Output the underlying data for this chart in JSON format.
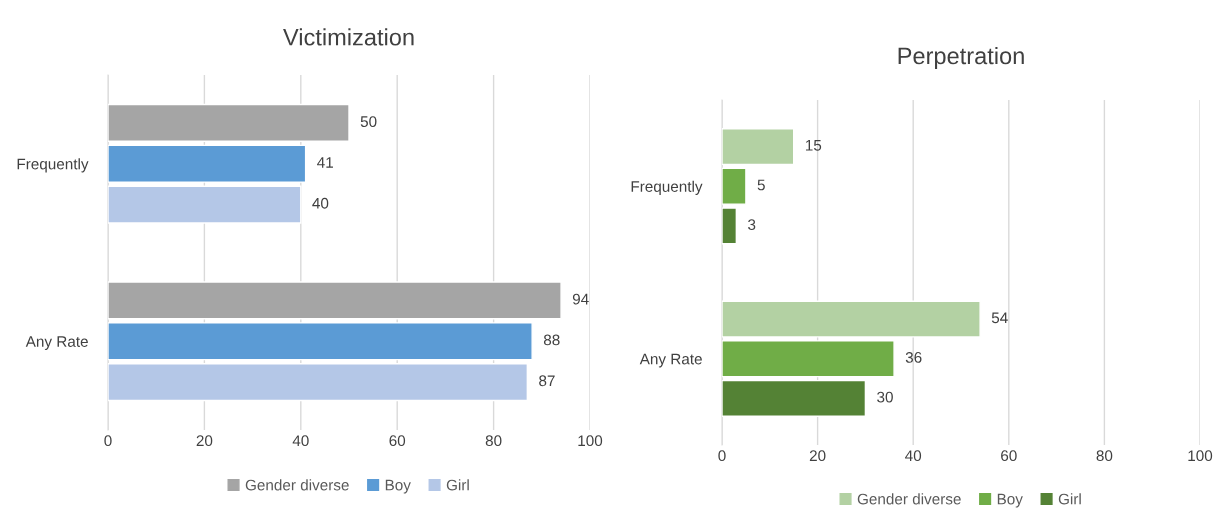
{
  "chart_data": [
    {
      "type": "bar",
      "orientation": "horizontal",
      "title": "Victimization",
      "categories": [
        "Frequently",
        "Any Rate"
      ],
      "series": [
        {
          "name": "Gender diverse",
          "color": "#a5a5a5",
          "values": [
            50,
            94
          ]
        },
        {
          "name": "Boy",
          "color": "#5b9bd5",
          "values": [
            41,
            88
          ]
        },
        {
          "name": "Girl",
          "color": "#b4c7e7",
          "values": [
            40,
            87
          ]
        }
      ],
      "xlim": [
        0,
        100
      ],
      "xticks": [
        0,
        20,
        40,
        60,
        80,
        100
      ],
      "grid": "x",
      "legend": "bottom",
      "data_labels": true
    },
    {
      "type": "bar",
      "orientation": "horizontal",
      "title": "Perpetration",
      "categories": [
        "Frequently",
        "Any Rate"
      ],
      "series": [
        {
          "name": "Gender diverse",
          "color": "#b3d1a3",
          "values": [
            15,
            54
          ]
        },
        {
          "name": "Boy",
          "color": "#70ad47",
          "values": [
            5,
            36
          ]
        },
        {
          "name": "Girl",
          "color": "#548235",
          "values": [
            3,
            30
          ]
        }
      ],
      "xlim": [
        0,
        100
      ],
      "xticks": [
        0,
        20,
        40,
        60,
        80,
        100
      ],
      "grid": "x",
      "legend": "bottom",
      "data_labels": true
    }
  ]
}
